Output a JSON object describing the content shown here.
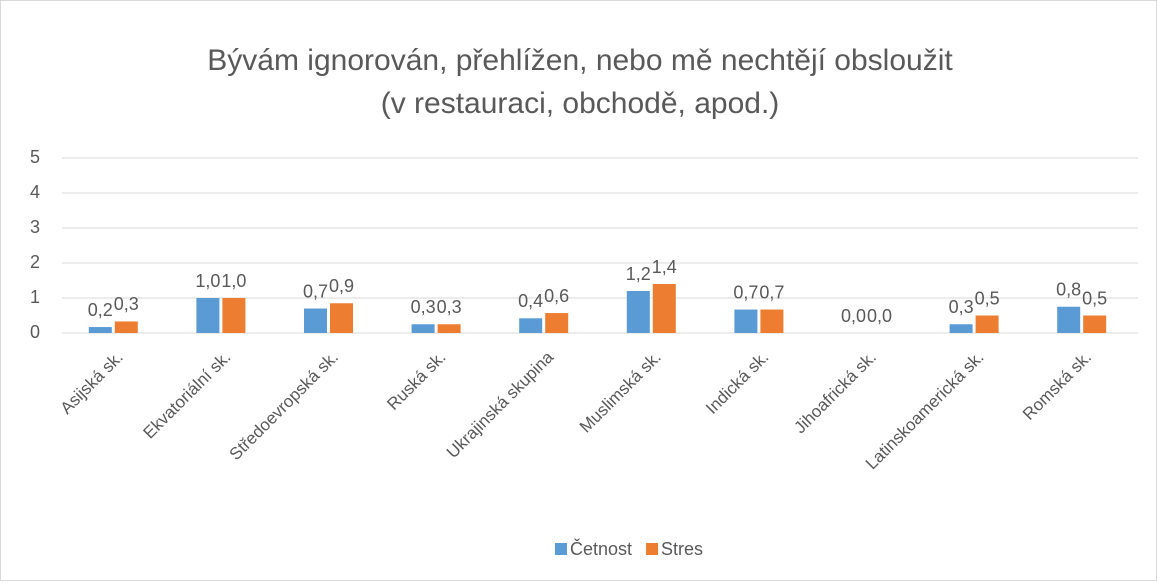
{
  "chart_data": {
    "type": "bar",
    "title": "Bývám ignorován, přehlížen, nebo mě nechtějí obsloužit",
    "subtitle": "(v restauraci, obchodě, apod.)",
    "categories": [
      "Asijská sk.",
      "Ekvatoriální sk.",
      "Středoevropská sk.",
      "Ruská sk.",
      "Ukrajinská skupina",
      "Muslimská sk.",
      "Indická sk.",
      "Jihoafrická sk.",
      "Latinskoamerická sk.",
      "Romská sk."
    ],
    "series": [
      {
        "name": "Četnost",
        "color": "#5b9bd5",
        "values": [
          0.17,
          1.0,
          0.7,
          0.25,
          0.42,
          1.2,
          0.67,
          0,
          0.25,
          0.75
        ],
        "value_labels": [
          "0,2",
          "1,0",
          "0,7",
          "0,3",
          "0,4",
          "1,2",
          "0,7",
          "0,0",
          "0,3",
          "0,8"
        ]
      },
      {
        "name": "Stres",
        "color": "#ed7d31",
        "values": [
          0.33,
          1.0,
          0.85,
          0.25,
          0.57,
          1.4,
          0.67,
          0,
          0.5,
          0.5
        ],
        "value_labels": [
          "0,3",
          "1,0",
          "0,9",
          "0,3",
          "0,6",
          "1,4",
          "0,7",
          "0,0",
          "0,5",
          "0,5"
        ]
      }
    ],
    "ylim": [
      0,
      5
    ],
    "yticks": [
      0,
      1,
      2,
      3,
      4,
      5
    ],
    "grid": true,
    "legend": "bottom"
  }
}
